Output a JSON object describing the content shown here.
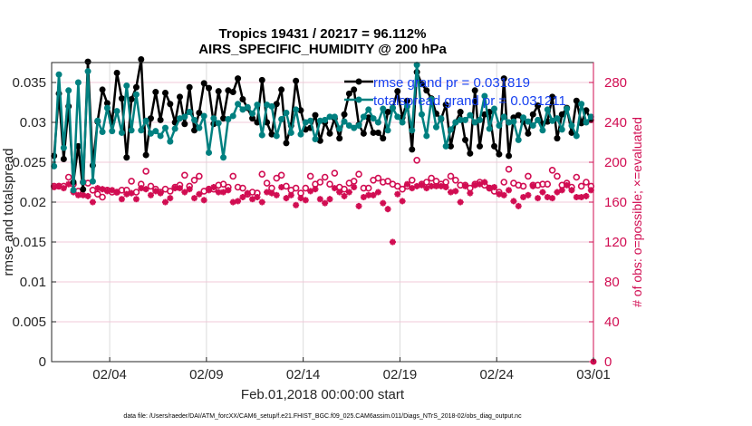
{
  "chart_data": {
    "type": "line",
    "title": [
      "Tropics 19431 / 20217 = 96.112%",
      "AIRS_SPECIFIC_HUMIDITY @ 200 hPa"
    ],
    "xlabel": "Feb.01,2018 00:00:00 start",
    "ylabel": "rmse and totalspread",
    "ylabel_right": "# of obs: o=possible; ×=evaluated",
    "footnote": "data file: /Users/raeder/DAI/ATM_forcXX/CAM6_setup/f.e21.FHIST_BGC.f09_025.CAM6assim.011/Diags_NTrS_2018-02/obs_diag_output.nc",
    "xlim_days": [
      0,
      28
    ],
    "x_ticks": [
      {
        "day": 3,
        "label": "02/04"
      },
      {
        "day": 8,
        "label": "02/09"
      },
      {
        "day": 13,
        "label": "02/14"
      },
      {
        "day": 18,
        "label": "02/19"
      },
      {
        "day": 23,
        "label": "02/24"
      },
      {
        "day": 28,
        "label": "03/01"
      }
    ],
    "ylim": [
      0,
      0.0375
    ],
    "y_ticks": [
      "0",
      "0.005",
      "0.01",
      "0.015",
      "0.02",
      "0.025",
      "0.03",
      "0.035"
    ],
    "y_tick_values": [
      0,
      0.005,
      0.01,
      0.015,
      0.02,
      0.025,
      0.03,
      0.035
    ],
    "ylim_right": [
      0,
      300
    ],
    "y_ticks_right": [
      "0",
      "40",
      "80",
      "120",
      "160",
      "200",
      "240",
      "280"
    ],
    "y_tick_values_right": [
      0,
      40,
      80,
      120,
      160,
      200,
      240,
      280
    ],
    "grid": true,
    "legend": {
      "placement": "top-right",
      "entries": [
        {
          "label": "rmse grand pr = 0.031819",
          "series": "rmse"
        },
        {
          "label": "totalspread grand pr = 0.031211",
          "series": "totalspread"
        }
      ]
    },
    "colors": {
      "rmse": "#000000",
      "totalspread": "#008080",
      "obs": "#d10d52",
      "legend_text": "#1640f0",
      "grid": "#f0c8d8"
    },
    "time_step_days": 0.25,
    "series": [
      {
        "name": "rmse",
        "axis": "left",
        "values": [
          0.0258,
          0.0336,
          0.0254,
          0.032,
          0.0225,
          0.027,
          0.0216,
          0.0376,
          0.0246,
          0.0301,
          0.0341,
          0.0324,
          0.03,
          0.0362,
          0.033,
          0.0256,
          0.0329,
          0.0344,
          0.0379,
          0.0259,
          0.0305,
          0.0338,
          0.0303,
          0.0337,
          0.0323,
          0.03,
          0.0332,
          0.0298,
          0.0344,
          0.029,
          0.0312,
          0.0349,
          0.0343,
          0.0298,
          0.0339,
          0.0305,
          0.034,
          0.0338,
          0.0355,
          0.0329,
          0.0318,
          0.0305,
          0.03,
          0.0353,
          0.03,
          0.0285,
          0.0323,
          0.0341,
          0.0274,
          0.0296,
          0.0352,
          0.0315,
          0.0291,
          0.0293,
          0.0309,
          0.0277,
          0.03,
          0.0286,
          0.0305,
          0.028,
          0.031,
          0.0336,
          0.0341,
          0.0297,
          0.0286,
          0.0306,
          0.0287,
          0.0287,
          0.028,
          0.0313,
          0.0318,
          0.0339,
          0.0306,
          0.0327,
          0.0266,
          0.0363,
          0.0348,
          0.034,
          0.033,
          0.0311,
          0.0304,
          0.0322,
          0.027,
          0.03,
          0.0313,
          0.0278,
          0.0261,
          0.034,
          0.027,
          0.031,
          0.0313,
          0.027,
          0.026,
          0.0355,
          0.0258,
          0.0306,
          0.0309,
          0.0301,
          0.0286,
          0.031,
          0.0321,
          0.0298,
          0.0301,
          0.0332,
          0.028,
          0.031,
          0.0318,
          0.0287,
          0.0327,
          0.0299,
          0.0315,
          0.0303
        ]
      },
      {
        "name": "totalspread",
        "axis": "left",
        "values": [
          0.0245,
          0.036,
          0.0268,
          0.034,
          0.0215,
          0.035,
          0.0225,
          0.0364,
          0.0226,
          0.0302,
          0.0288,
          0.0318,
          0.0289,
          0.0314,
          0.0287,
          0.0346,
          0.029,
          0.0335,
          0.029,
          0.0302,
          0.0286,
          0.0289,
          0.0283,
          0.0293,
          0.0276,
          0.0292,
          0.0305,
          0.0307,
          0.0313,
          0.0303,
          0.0293,
          0.0308,
          0.0262,
          0.0305,
          0.0299,
          0.0256,
          0.0304,
          0.0308,
          0.0323,
          0.0316,
          0.0319,
          0.0311,
          0.0322,
          0.0284,
          0.0322,
          0.032,
          0.0283,
          0.0304,
          0.0312,
          0.0287,
          0.0316,
          0.0285,
          0.03,
          0.0302,
          0.0279,
          0.0302,
          0.0303,
          0.0307,
          0.0307,
          0.0292,
          0.0301,
          0.0296,
          0.0293,
          0.0296,
          0.0307,
          0.0316,
          0.0305,
          0.03,
          0.0317,
          0.029,
          0.0318,
          0.0307,
          0.03,
          0.032,
          0.029,
          0.0372,
          0.031,
          0.0283,
          0.0329,
          0.0294,
          0.0305,
          0.027,
          0.0291,
          0.03,
          0.0303,
          0.0303,
          0.0309,
          0.03,
          0.0303,
          0.0333,
          0.0292,
          0.0317,
          0.0296,
          0.0307,
          0.03,
          0.0301,
          0.0278,
          0.0306,
          0.0301,
          0.0296,
          0.0303,
          0.029,
          0.0316,
          0.0302,
          0.0305,
          0.0291,
          0.0317,
          0.0296,
          0.0283,
          0.0323,
          0.03,
          0.0307
        ]
      },
      {
        "name": "obs_possible",
        "axis": "right",
        "marker": "o",
        "values": [
          176,
          176,
          176,
          185,
          178,
          171,
          180,
          179,
          172,
          168,
          165,
          172,
          170,
          170,
          172,
          172,
          181,
          170,
          178,
          191,
          176,
          173,
          170,
          173,
          171,
          175,
          177,
          187,
          176,
          182,
          186,
          171,
          173,
          173,
          177,
          178,
          175,
          186,
          175,
          174,
          168,
          170,
          169,
          188,
          179,
          174,
          184,
          187,
          176,
          172,
          174,
          169,
          174,
          186,
          178,
          180,
          185,
          178,
          189,
          175,
          173,
          179,
          181,
          188,
          174,
          174,
          182,
          184,
          180,
          181,
          178,
          176,
          173,
          176,
          182,
          202,
          178,
          180,
          184,
          181,
          178,
          180,
          186,
          182,
          177,
          177,
          174,
          178,
          180,
          177,
          174,
          171,
          170,
          180,
          193,
          179,
          177,
          176,
          186,
          177,
          177,
          178,
          178,
          192,
          186,
          177,
          179,
          175,
          185,
          176,
          180,
          176
        ]
      },
      {
        "name": "obs_evaluated",
        "axis": "right",
        "marker": "x",
        "values": [
          175,
          176,
          174,
          178,
          170,
          167,
          167,
          166,
          160,
          174,
          173,
          171,
          172,
          170,
          163,
          168,
          169,
          163,
          174,
          173,
          167,
          171,
          169,
          160,
          164,
          174,
          174,
          170,
          173,
          164,
          168,
          162,
          172,
          175,
          170,
          170,
          172,
          160,
          161,
          165,
          169,
          163,
          165,
          160,
          170,
          169,
          167,
          175,
          164,
          167,
          157,
          164,
          162,
          171,
          173,
          163,
          159,
          163,
          174,
          170,
          166,
          170,
          175,
          156,
          165,
          167,
          167,
          170,
          159,
          153,
          120,
          168,
          161,
          178,
          174,
          176,
          177,
          174,
          176,
          176,
          176,
          175,
          170,
          171,
          160,
          176,
          169,
          177,
          178,
          180,
          174,
          175,
          168,
          167,
          172,
          161,
          156,
          165,
          167,
          176,
          164,
          170,
          165,
          164,
          170,
          172,
          177,
          172,
          165,
          165,
          166,
          172
        ]
      }
    ]
  }
}
